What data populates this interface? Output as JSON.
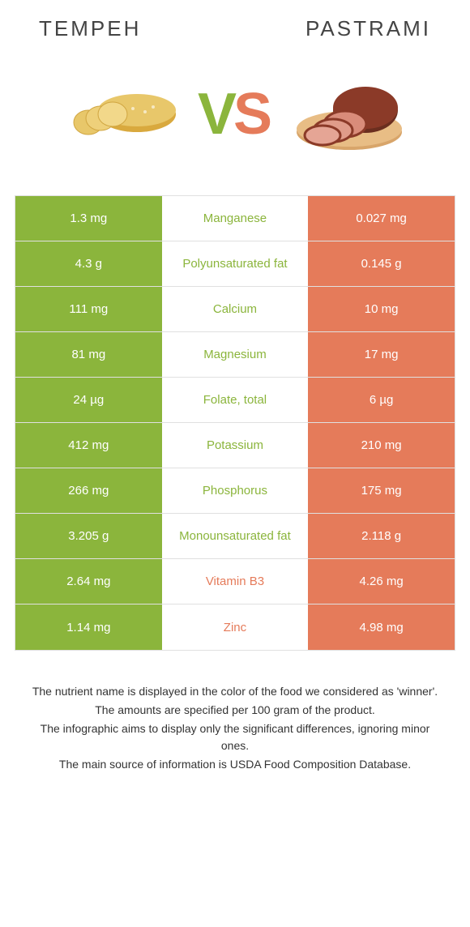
{
  "colors": {
    "green": "#8bb53c",
    "orange": "#e57b5a",
    "green_text": "#8bb53c",
    "orange_text": "#e57b5a"
  },
  "titles": {
    "left": "TEMPEH",
    "right": "PASTRAMI"
  },
  "vs": {
    "v": "V",
    "s": "S"
  },
  "rows": [
    {
      "left": "1.3 mg",
      "nutrient": "Manganese",
      "right": "0.027 mg",
      "winner": "green"
    },
    {
      "left": "4.3 g",
      "nutrient": "Polyunsaturated fat",
      "right": "0.145 g",
      "winner": "green"
    },
    {
      "left": "111 mg",
      "nutrient": "Calcium",
      "right": "10 mg",
      "winner": "green"
    },
    {
      "left": "81 mg",
      "nutrient": "Magnesium",
      "right": "17 mg",
      "winner": "green"
    },
    {
      "left": "24 µg",
      "nutrient": "Folate, total",
      "right": "6 µg",
      "winner": "green"
    },
    {
      "left": "412 mg",
      "nutrient": "Potassium",
      "right": "210 mg",
      "winner": "green"
    },
    {
      "left": "266 mg",
      "nutrient": "Phosphorus",
      "right": "175 mg",
      "winner": "green"
    },
    {
      "left": "3.205 g",
      "nutrient": "Monounsaturated fat",
      "right": "2.118 g",
      "winner": "green"
    },
    {
      "left": "2.64 mg",
      "nutrient": "Vitamin B3",
      "right": "4.26 mg",
      "winner": "orange"
    },
    {
      "left": "1.14 mg",
      "nutrient": "Zinc",
      "right": "4.98 mg",
      "winner": "orange"
    }
  ],
  "footer": [
    "The nutrient name is displayed in the color of the food we considered as 'winner'.",
    "The amounts are specified per 100 gram of the product.",
    "The infographic aims to display only the significant differences, ignoring minor ones.",
    "The main source of information is USDA Food Composition Database."
  ]
}
